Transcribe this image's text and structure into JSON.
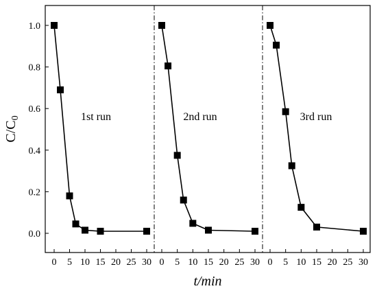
{
  "chart_data": {
    "type": "scatter",
    "ylabel_main": "C/C",
    "ylabel_sub": "0",
    "xlabel_t": "t",
    "xlabel_rest": "/min",
    "ylim": [
      -0.1,
      1.09
    ],
    "yticks": [
      "0.0",
      "0.2",
      "0.4",
      "0.6",
      "0.8",
      "1.0"
    ],
    "xticks": [
      "0",
      "5",
      "10",
      "15",
      "20",
      "25",
      "30"
    ],
    "panels": [
      {
        "name": "1st run",
        "x": [
          0,
          2,
          5,
          7,
          10,
          15,
          30
        ],
        "y": [
          1.0,
          0.69,
          0.18,
          0.045,
          0.015,
          0.01,
          0.01
        ]
      },
      {
        "name": "2nd run",
        "x": [
          0,
          2,
          5,
          7,
          10,
          15,
          30
        ],
        "y": [
          1.0,
          0.805,
          0.375,
          0.16,
          0.048,
          0.015,
          0.01
        ]
      },
      {
        "name": "3rd run",
        "x": [
          0,
          2,
          5,
          7,
          10,
          15,
          30
        ],
        "y": [
          1.0,
          0.905,
          0.585,
          0.325,
          0.125,
          0.03,
          0.01
        ]
      }
    ]
  }
}
